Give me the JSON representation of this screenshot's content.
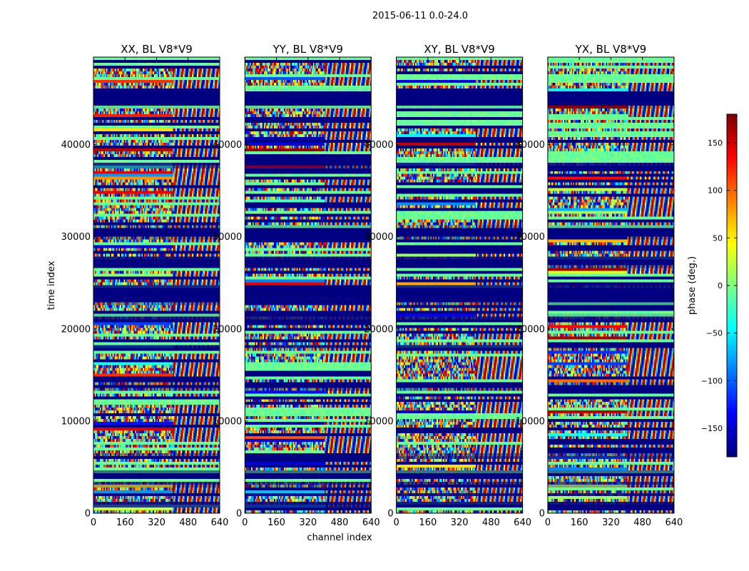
{
  "suptitle": "2015-06-11 0.0-24.0",
  "chart_data": {
    "type": "heatmap",
    "title": "2015-06-11 0.0-24.0",
    "xlabel": "channel index",
    "ylabel": "time index",
    "xlim": [
      0,
      640
    ],
    "ylim": [
      0,
      49500
    ],
    "xticks": [
      0,
      160,
      320,
      480,
      640
    ],
    "yticks": [
      0,
      10000,
      20000,
      30000,
      40000
    ],
    "panels": [
      {
        "title": "XX, BL V8*V9",
        "seed": 11,
        "ch_split": 400
      },
      {
        "title": "YY, BL V8*V9",
        "seed": 23,
        "ch_split": 400
      },
      {
        "title": "XY, BL V8*V9",
        "seed": 37,
        "ch_split": 400
      },
      {
        "title": "YX, BL V8*V9",
        "seed": 53,
        "ch_split": 400
      }
    ],
    "colorbar": {
      "label": "phase (deg.)",
      "colormap": "jet",
      "range": [
        -180,
        180
      ],
      "ticks": [
        150,
        100,
        50,
        0,
        -50,
        -100,
        -150
      ],
      "tick_labels": [
        "150",
        "100",
        "50",
        "0",
        "−50",
        "−100",
        "−150"
      ]
    },
    "flagged_time_ranges": [
      [
        22800,
        24700
      ],
      [
        29900,
        31000
      ],
      [
        26800,
        27800
      ],
      [
        44200,
        45800
      ],
      [
        37600,
        38000
      ],
      [
        700,
        1200
      ],
      [
        1900,
        2200
      ],
      [
        3000,
        3300
      ],
      [
        4000,
        4500
      ],
      [
        6000,
        6300
      ],
      [
        13500,
        14000
      ],
      [
        17900,
        18200
      ],
      [
        21100,
        21400
      ]
    ]
  }
}
